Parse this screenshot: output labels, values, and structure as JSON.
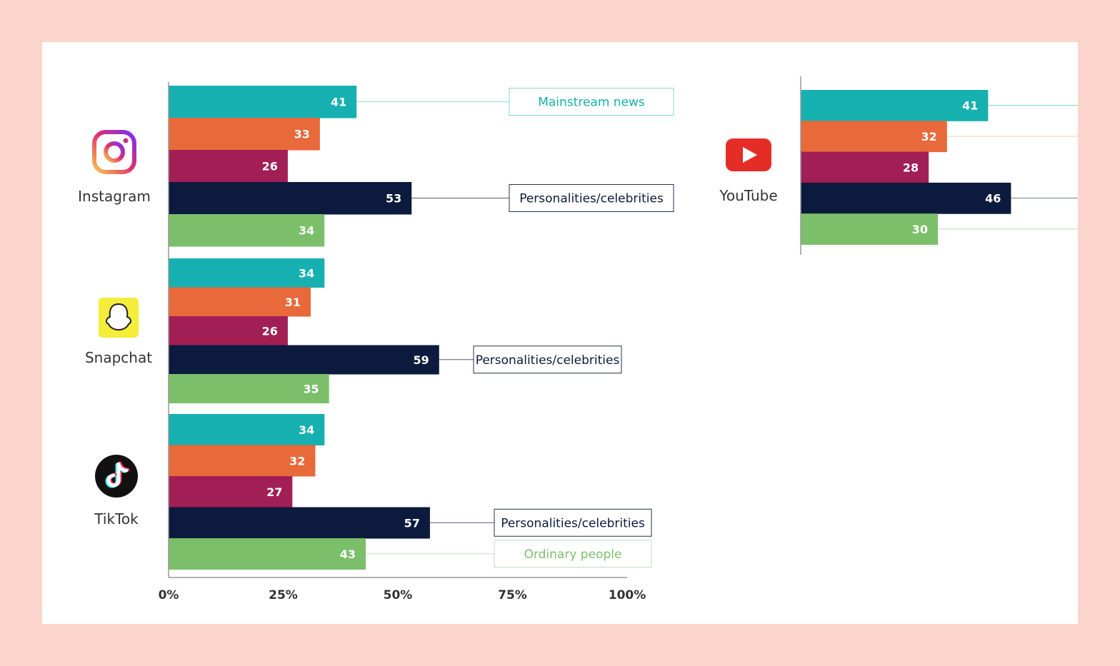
{
  "colors": {
    "page_bg": "#fcd5cd",
    "card_bg": "#ffffff",
    "series": [
      "#16b0b0",
      "#e8693a",
      "#a11f55",
      "#0c1a3d",
      "#7cbf6b"
    ],
    "axis": "#999999",
    "text": "#333333"
  },
  "chart_data": [
    {
      "type": "bar",
      "orientation": "horizontal",
      "panel": "left",
      "xlim": [
        0,
        100
      ],
      "xticks": [
        "0%",
        "25%",
        "50%",
        "75%",
        "100%"
      ],
      "groups": [
        {
          "name": "Instagram",
          "icon": "instagram-icon",
          "values": [
            41,
            33,
            26,
            53,
            34
          ]
        },
        {
          "name": "Snapchat",
          "icon": "snapchat-icon",
          "values": [
            34,
            31,
            26,
            59,
            35
          ]
        },
        {
          "name": "TikTok",
          "icon": "tiktok-icon",
          "values": [
            34,
            32,
            27,
            57,
            43
          ]
        }
      ],
      "callouts": [
        {
          "group": 0,
          "series_index": 0,
          "text": "Mainstream news"
        },
        {
          "group": 0,
          "series_index": 3,
          "text": "Personalities/celebrities"
        },
        {
          "group": 1,
          "series_index": 3,
          "text": "Personalities/celebrities"
        },
        {
          "group": 2,
          "series_index": 3,
          "text": "Personalities/celebrities"
        },
        {
          "group": 2,
          "series_index": 4,
          "text": "Ordinary people"
        }
      ]
    },
    {
      "type": "bar",
      "orientation": "horizontal",
      "panel": "right",
      "xlim": [
        0,
        100
      ],
      "groups": [
        {
          "name": "YouTube",
          "icon": "youtube-icon",
          "values": [
            41,
            32,
            28,
            46,
            30
          ]
        }
      ]
    }
  ]
}
